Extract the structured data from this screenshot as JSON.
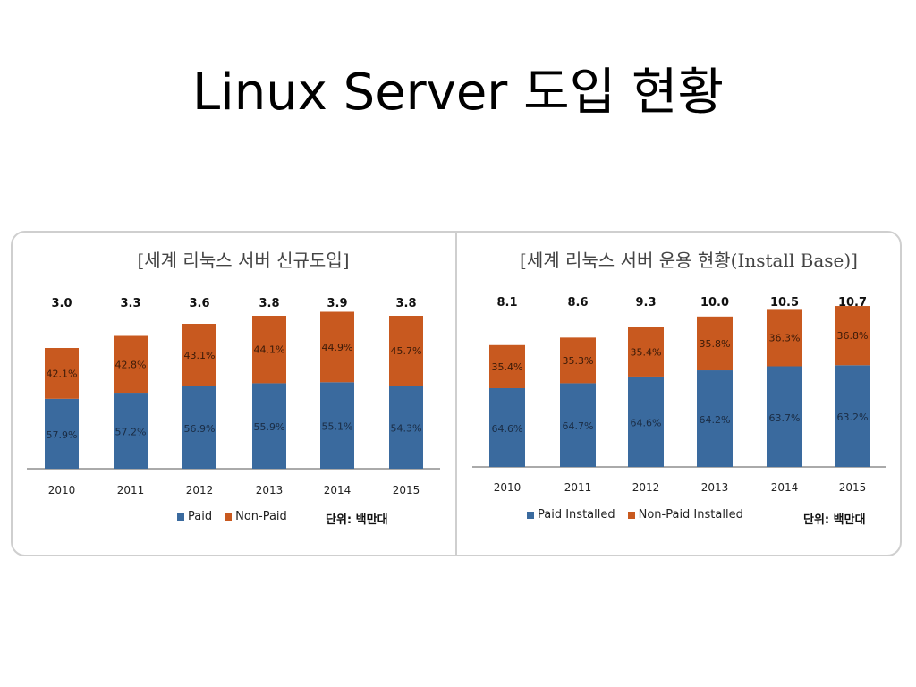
{
  "slide": {
    "title": "Linux Server 도입 현황"
  },
  "colors": {
    "paid": "#3a6a9e",
    "non_paid": "#c8591f",
    "frame": "#cfcfcf",
    "axis": "#555555"
  },
  "chart_data": [
    {
      "type": "bar",
      "title": "[세계 리눅스 서버 신규도입]",
      "categories": [
        "2010",
        "2011",
        "2012",
        "2013",
        "2014",
        "2015"
      ],
      "totals": [
        "3.0",
        "3.3",
        "3.6",
        "3.8",
        "3.9",
        "3.8"
      ],
      "series": [
        {
          "name": "Paid",
          "values": [
            1.737,
            1.888,
            2.048,
            2.124,
            2.149,
            2.063
          ],
          "labels": [
            "57.9%",
            "57.2%",
            "56.9%",
            "55.9%",
            "55.1%",
            "54.3%"
          ]
        },
        {
          "name": "Non-Paid",
          "values": [
            1.263,
            1.412,
            1.552,
            1.676,
            1.751,
            1.737
          ],
          "labels": [
            "42.1%",
            "42.8%",
            "43.1%",
            "44.1%",
            "44.9%",
            "45.7%"
          ]
        }
      ],
      "stacked": true,
      "ylim": [
        0,
        4.0
      ],
      "unit": "단위: 백만대",
      "legend_position": "bottom"
    },
    {
      "type": "bar",
      "title": "[세계 리눅스 서버 운용 현황(Install Base)]",
      "categories": [
        "2010",
        "2011",
        "2012",
        "2013",
        "2014",
        "2015"
      ],
      "totals": [
        "8.1",
        "8.6",
        "9.3",
        "10.0",
        "10.5",
        "10.7"
      ],
      "series": [
        {
          "name": "Paid Installed",
          "values": [
            5.233,
            5.564,
            6.008,
            6.42,
            6.689,
            6.762
          ],
          "labels": [
            "64.6%",
            "64.7%",
            "64.6%",
            "64.2%",
            "63.7%",
            "63.2%"
          ]
        },
        {
          "name": "Non-Paid Installed",
          "values": [
            2.867,
            3.036,
            3.292,
            3.58,
            3.811,
            3.938
          ],
          "labels": [
            "35.4%",
            "35.3%",
            "35.4%",
            "35.8%",
            "36.3%",
            "36.8%"
          ]
        }
      ],
      "stacked": true,
      "ylim": [
        0,
        11.0
      ],
      "unit": "단위: 백만대",
      "legend_position": "bottom"
    }
  ]
}
